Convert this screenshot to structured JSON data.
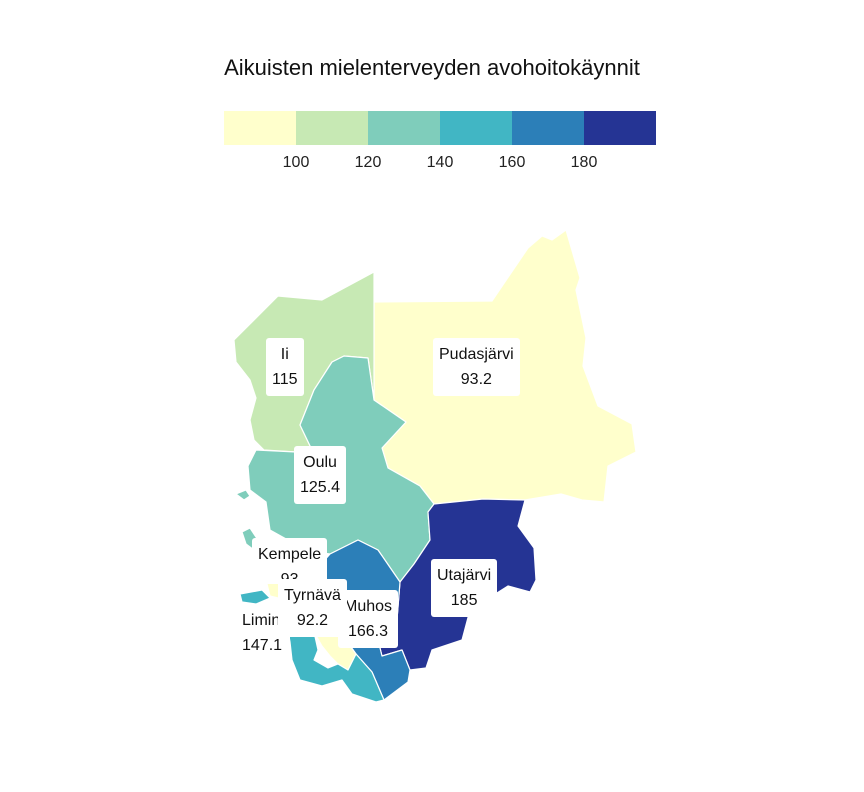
{
  "title": "Aikuisten mielenterveyden avohoitokäynnit",
  "legend": {
    "colors": [
      "#ffffcc",
      "#c7e9b4",
      "#7fcdbb",
      "#41b6c4",
      "#2c7fb8",
      "#253494"
    ],
    "ticks": [
      "100",
      "120",
      "140",
      "160",
      "180"
    ]
  },
  "regions": [
    {
      "name": "Ii",
      "value": "115",
      "color": "#c7e9b4"
    },
    {
      "name": "Pudasjärvi",
      "value": "93.2",
      "color": "#ffffcc"
    },
    {
      "name": "Oulu",
      "value": "125.4",
      "color": "#7fcdbb"
    },
    {
      "name": "Kempele",
      "value": "93",
      "color": "#ffffcc"
    },
    {
      "name": "Utajärvi",
      "value": "185",
      "color": "#253494"
    },
    {
      "name": "Tyrnävä",
      "value": "92.2",
      "color": "#ffffcc"
    },
    {
      "name": "Muhos",
      "value": "166.3",
      "color": "#2c7fb8"
    },
    {
      "name": "Limin",
      "value": "147.1",
      "color": "#41b6c4"
    }
  ]
}
